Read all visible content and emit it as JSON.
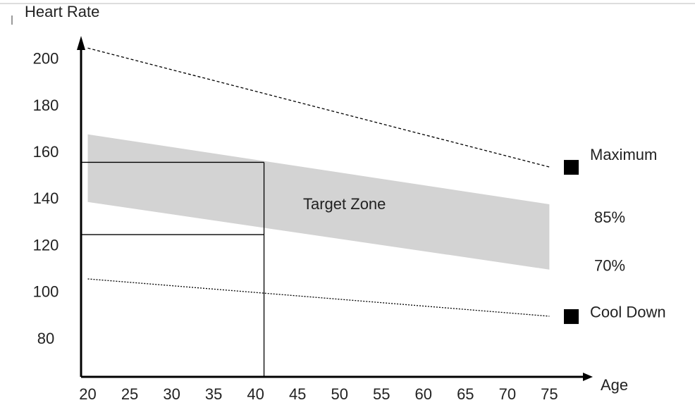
{
  "chart_data": {
    "type": "line",
    "y_label": "Heart Rate",
    "x_label": "Age",
    "xlim": [
      19.2,
      79
    ],
    "ylim": [
      64,
      209
    ],
    "xticks": [
      20,
      25,
      30,
      35,
      40,
      45,
      50,
      55,
      60,
      65,
      70,
      75
    ],
    "yticks": [
      80,
      100,
      120,
      140,
      160,
      180,
      200
    ],
    "x": [
      20,
      75
    ],
    "series": [
      {
        "name": "Maximum",
        "color": "#000000",
        "values": [
          205,
          154
        ],
        "style": "dashed"
      },
      {
        "name": "Cool Down",
        "color": "#000000",
        "values": [
          106,
          90
        ],
        "style": "dotted"
      }
    ],
    "band": {
      "name": "Target Zone",
      "color": "#d3d3d3",
      "upper_name": "85%",
      "upper": [
        168,
        138
      ],
      "lower_name": "70%",
      "lower": [
        139,
        110
      ]
    },
    "example": {
      "x": 41,
      "values": [
        156,
        125
      ]
    }
  }
}
